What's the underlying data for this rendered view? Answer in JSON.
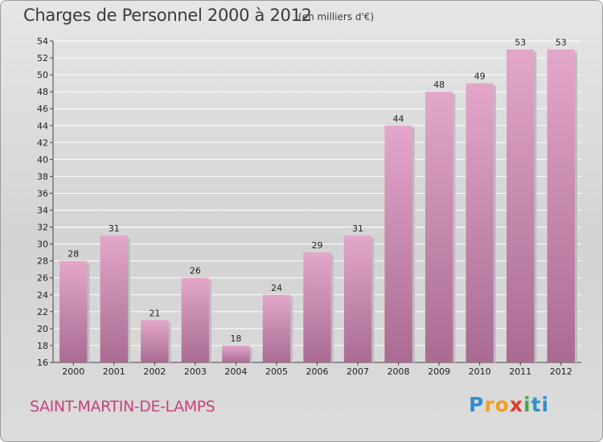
{
  "header": {
    "title": "Charges de Personnel 2000 à 2012",
    "subtitle": "(en milliers d'€)"
  },
  "footer": {
    "place": "SAINT-MARTIN-DE-LAMPS",
    "logo": {
      "letters": [
        "P",
        "r",
        "o",
        "x",
        "i",
        "t",
        "i"
      ],
      "colors": [
        "#2f8fd0",
        "#f0a020",
        "#f0a020",
        "#e03a2a",
        "#4aa84a",
        "#2f8fd0",
        "#2f8fd0"
      ]
    }
  },
  "colors": {
    "bar_light": "#e3a7ca",
    "bar_dark": "#a96b92",
    "accent": "#c8417e"
  },
  "chart_data": {
    "type": "bar",
    "categories": [
      "2000",
      "2001",
      "2002",
      "2003",
      "2004",
      "2005",
      "2006",
      "2007",
      "2008",
      "2009",
      "2010",
      "2011",
      "2012"
    ],
    "values": [
      28,
      31,
      21,
      26,
      18,
      24,
      29,
      31,
      44,
      48,
      49,
      53,
      53
    ],
    "data_labels": [
      "28",
      "31",
      "21",
      "26",
      "18",
      "24",
      "29",
      "31",
      "44",
      "48",
      "49",
      "53",
      "53"
    ],
    "ylim": [
      16,
      54
    ],
    "yticks": [
      "16",
      "18",
      "20",
      "22",
      "24",
      "26",
      "28",
      "30",
      "32",
      "34",
      "36",
      "38",
      "40",
      "42",
      "44",
      "46",
      "48",
      "50",
      "52",
      "54"
    ],
    "grid": true,
    "title": "Charges de Personnel 2000 à 2012",
    "xlabel": "",
    "ylabel": ""
  }
}
